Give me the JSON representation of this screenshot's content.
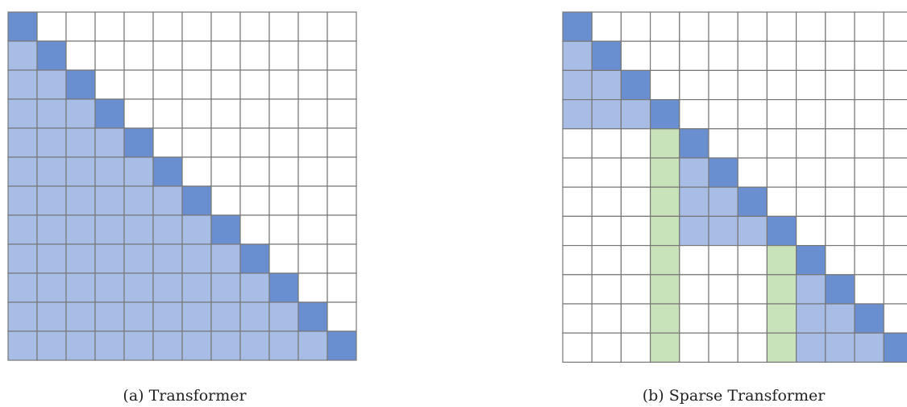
{
  "colors": {
    "diagonal": "#6a8fd0",
    "attended": "#a8bde6",
    "sparse_column": "#c8e2ba",
    "empty": "#ffffff",
    "grid_line": "#777777"
  },
  "panels": [
    {
      "id": "a",
      "caption": "(a) Transformer",
      "rows": 12,
      "cols": 12,
      "attention": "causal-full",
      "column_cells": []
    },
    {
      "id": "b",
      "caption": "(b) Sparse Transformer",
      "rows": 12,
      "cols": 12,
      "attention": "sparse-strided",
      "block_size": 4,
      "local_window": 4,
      "column_cells": [
        [
          4,
          3
        ],
        [
          5,
          3
        ],
        [
          6,
          3
        ],
        [
          7,
          3
        ],
        [
          8,
          3
        ],
        [
          9,
          3
        ],
        [
          10,
          3
        ],
        [
          11,
          3
        ],
        [
          8,
          7
        ],
        [
          9,
          7
        ],
        [
          10,
          7
        ],
        [
          11,
          7
        ]
      ]
    }
  ]
}
